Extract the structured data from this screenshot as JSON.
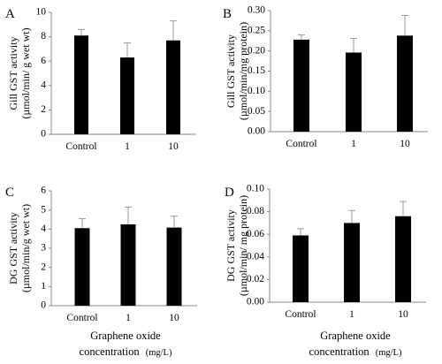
{
  "chart_data": [
    {
      "panel": "A",
      "type": "bar",
      "ylabel": [
        "Gill GST activity",
        "(µmol/min/ g wet wt)"
      ],
      "categories": [
        "Control",
        "1",
        "10"
      ],
      "values": [
        8.1,
        6.3,
        7.7
      ],
      "errors": [
        0.5,
        1.2,
        1.6
      ],
      "ylim": [
        0,
        10
      ],
      "yticks": [
        "0",
        "2",
        "4",
        "6",
        "8",
        "10"
      ],
      "grid": false
    },
    {
      "panel": "B",
      "type": "bar",
      "ylabel": [
        "Gill GST activity",
        "(µmol/min/mg protein)"
      ],
      "categories": [
        "Control",
        "1",
        "10"
      ],
      "values": [
        0.228,
        0.196,
        0.238
      ],
      "errors": [
        0.012,
        0.035,
        0.05
      ],
      "ylim": [
        0,
        0.3
      ],
      "yticks": [
        "0.00",
        "0.05",
        "0.10",
        "0.15",
        "0.20",
        "0.25",
        "0.30"
      ],
      "grid": false
    },
    {
      "panel": "C",
      "type": "bar",
      "ylabel": [
        "DG GST activity",
        "(µmol/min/g wet wt)"
      ],
      "categories": [
        "Control",
        "1",
        "10"
      ],
      "values": [
        4.05,
        4.25,
        4.08
      ],
      "errors": [
        0.5,
        0.9,
        0.6
      ],
      "ylim": [
        0,
        6
      ],
      "yticks": [
        "0",
        "1",
        "2",
        "3",
        "4",
        "5",
        "6"
      ],
      "grid": false
    },
    {
      "panel": "D",
      "type": "bar",
      "ylabel": [
        "DG GST activity",
        "(µmol/min/ mg protein)"
      ],
      "categories": [
        "Control",
        "1",
        "10"
      ],
      "values": [
        0.059,
        0.07,
        0.076
      ],
      "errors": [
        0.006,
        0.011,
        0.013
      ],
      "ylim": [
        0,
        0.1
      ],
      "yticks": [
        "0.00",
        "0.02",
        "0.04",
        "0.06",
        "0.08",
        "0.10"
      ],
      "grid": false
    }
  ],
  "xlabel": {
    "line1": "Graphene oxide",
    "line2": "concentration",
    "unit": "(mg/L)"
  }
}
